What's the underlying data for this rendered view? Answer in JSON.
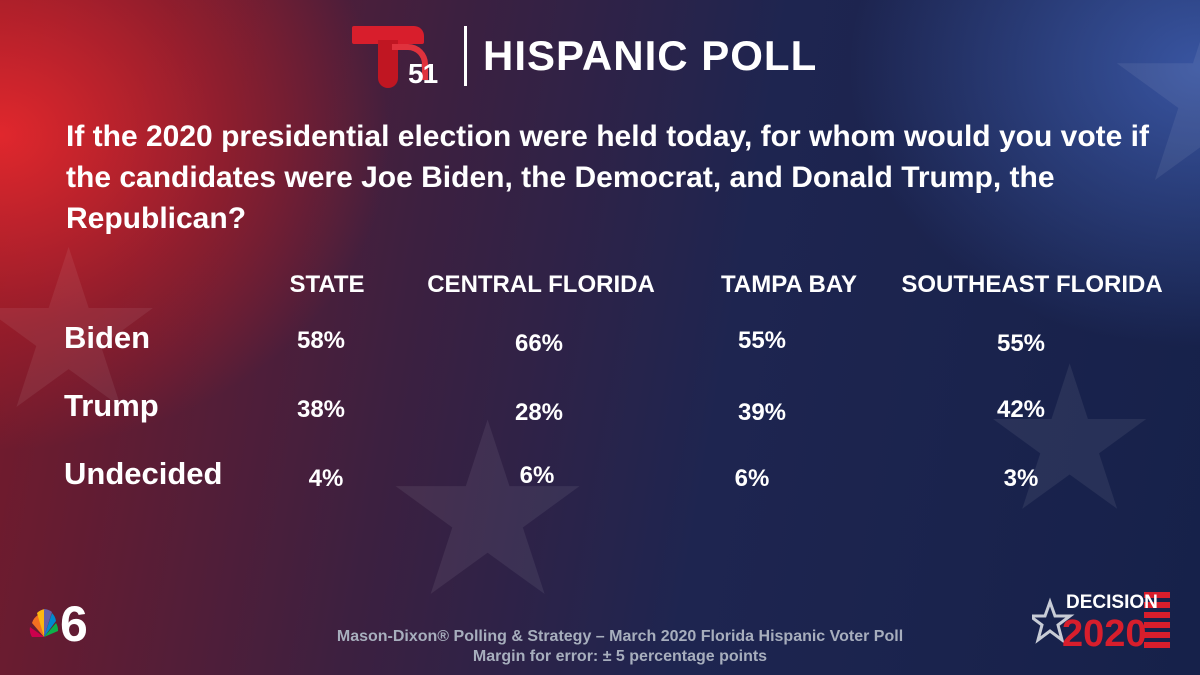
{
  "header": {
    "logo_number": "51",
    "title": "HISPANIC POLL"
  },
  "question": "If the 2020 presidential election were held today, for whom would you vote if the candidates were Joe Biden, the Democrat, and Donald Trump, the Republican?",
  "table": {
    "columns": [
      "STATE",
      "CENTRAL FLORIDA",
      "TAMPA BAY",
      "SOUTHEAST FLORIDA"
    ],
    "rows": [
      {
        "label": "Biden",
        "values": [
          "58%",
          "66%",
          "55%",
          "55%"
        ]
      },
      {
        "label": "Trump",
        "values": [
          "38%",
          "28%",
          "39%",
          "42%"
        ]
      },
      {
        "label": "Undecided",
        "values": [
          "4%",
          "6%",
          "6%",
          "3%"
        ]
      }
    ]
  },
  "footer": {
    "source": "Mason-Dixon® Polling & Strategy – March 2020 Florida Hispanic Voter Poll",
    "margin": "Margin for error: ± 5 percentage points"
  },
  "branding": {
    "station_number": "6",
    "decision_label": "DECISION",
    "decision_year": "2020"
  },
  "colors": {
    "brand_red": "#d81e2c",
    "footer_text": "#a7aebd"
  }
}
